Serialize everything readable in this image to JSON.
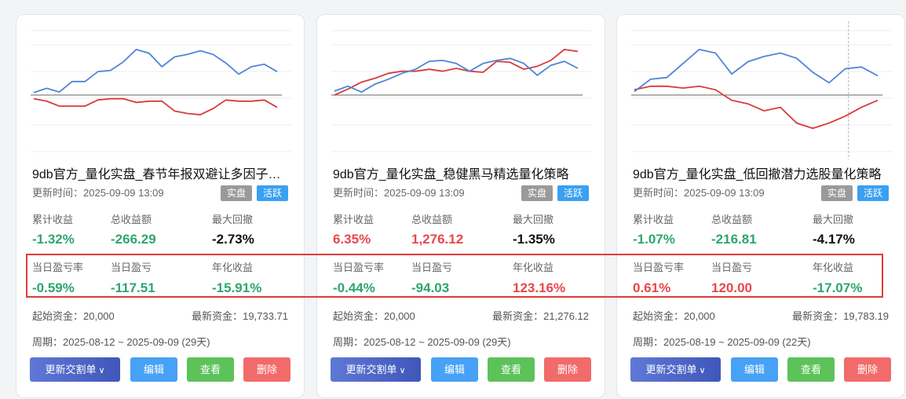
{
  "cards": [
    {
      "title": "9db官方_量化实盘_春节年报双避让多因子…",
      "update": "更新时间：2025-09-09 13:09",
      "tags": [
        "实盘",
        "活跃"
      ],
      "labels1": [
        "累计收益",
        "总收益额",
        "最大回撤"
      ],
      "values1": [
        "-1.32%",
        "-266.29",
        "-2.73%"
      ],
      "labels2": [
        "当日盈亏率",
        "当日盈亏",
        "年化收益"
      ],
      "values2": [
        "-0.59%",
        "-117.51",
        "-15.91%"
      ],
      "start_capital": "起始资金：20,000",
      "latest_capital": "最新资金：19,733.71",
      "period": "周期：2025-08-12 ~ 2025-09-09 (29天)",
      "buttons": {
        "update": "更新交割单",
        "edit": "编辑",
        "view": "查看",
        "delete": "删除"
      },
      "chart": {
        "blue": [
          0.2,
          0.55,
          0.25,
          1.1,
          1.1,
          1.9,
          2.0,
          2.7,
          3.7,
          3.4,
          2.3,
          3.1,
          3.3,
          3.6,
          3.3,
          2.6,
          1.7,
          2.3,
          2.5,
          1.9
        ],
        "red": [
          -0.3,
          -0.5,
          -0.9,
          -0.9,
          -0.9,
          -0.4,
          -0.3,
          -0.3,
          -0.6,
          -0.5,
          -0.5,
          -1.3,
          -1.5,
          -1.6,
          -1.1,
          -0.4,
          -0.5,
          -0.5,
          -0.4,
          -1.0
        ],
        "vline": null
      }
    },
    {
      "title": "9db官方_量化实盘_稳健黑马精选量化策略",
      "update": "更新时间：2025-09-09 13:09",
      "tags": [
        "实盘",
        "活跃"
      ],
      "labels1": [
        "累计收益",
        "总收益额",
        "最大回撤"
      ],
      "values1": [
        "6.35%",
        "1,276.12",
        "-1.35%"
      ],
      "labels2": [
        "当日盈亏率",
        "当日盈亏",
        "年化收益"
      ],
      "values2": [
        "-0.44%",
        "-94.03",
        "123.16%"
      ],
      "start_capital": "起始资金：20,000",
      "latest_capital": "最新资金：21,276.12",
      "period": "周期：2025-08-12 ~ 2025-09-09 (29天)",
      "buttons": {
        "update": "更新交割单",
        "edit": "编辑",
        "view": "查看",
        "delete": "删除"
      },
      "chart": {
        "blue": [
          0.4,
          0.9,
          0.3,
          1.1,
          1.6,
          2.2,
          2.6,
          3.4,
          3.5,
          3.2,
          2.4,
          3.2,
          3.5,
          3.7,
          3.2,
          2.0,
          3.0,
          3.4,
          2.7
        ],
        "red": [
          0.0,
          0.6,
          1.3,
          1.7,
          2.2,
          2.4,
          2.4,
          2.6,
          2.4,
          2.7,
          2.4,
          2.3,
          3.4,
          3.3,
          2.6,
          2.9,
          3.5,
          4.6,
          4.4
        ],
        "vline": null
      }
    },
    {
      "title": "9db官方_量化实盘_低回撤潜力选股量化策略",
      "update": "更新时间：2025-09-09 13:09",
      "tags": [
        "实盘",
        "活跃"
      ],
      "labels1": [
        "累计收益",
        "总收益额",
        "最大回撤"
      ],
      "values1": [
        "-1.07%",
        "-216.81",
        "-4.17%"
      ],
      "labels2": [
        "当日盈亏率",
        "当日盈亏",
        "年化收益"
      ],
      "values2": [
        "0.61%",
        "120.00",
        "-17.07%"
      ],
      "start_capital": "起始资金：20,000",
      "latest_capital": "最新资金：19,783.19",
      "period": "周期：2025-08-19 ~ 2025-09-09 (22天)",
      "buttons": {
        "update": "更新交割单",
        "edit": "编辑",
        "view": "查看",
        "delete": "删除"
      },
      "chart": {
        "blue": [
          0.2,
          0.9,
          1.0,
          1.8,
          2.6,
          2.4,
          1.2,
          1.9,
          2.2,
          2.4,
          2.1,
          1.3,
          0.7,
          1.5,
          1.6,
          1.1
        ],
        "red": [
          0.3,
          0.5,
          0.5,
          0.4,
          0.5,
          0.3,
          -0.3,
          -0.5,
          -0.9,
          -0.7,
          -1.6,
          -1.9,
          -1.6,
          -1.2,
          -0.7,
          -0.3
        ],
        "vline": 13.2
      }
    }
  ],
  "colors": {
    "line_blue": "#4e86d8",
    "line_red": "#d83b3b",
    "positive": "#e8474c",
    "negative": "#2ea56f",
    "highlight_border": "#e23b3b"
  }
}
